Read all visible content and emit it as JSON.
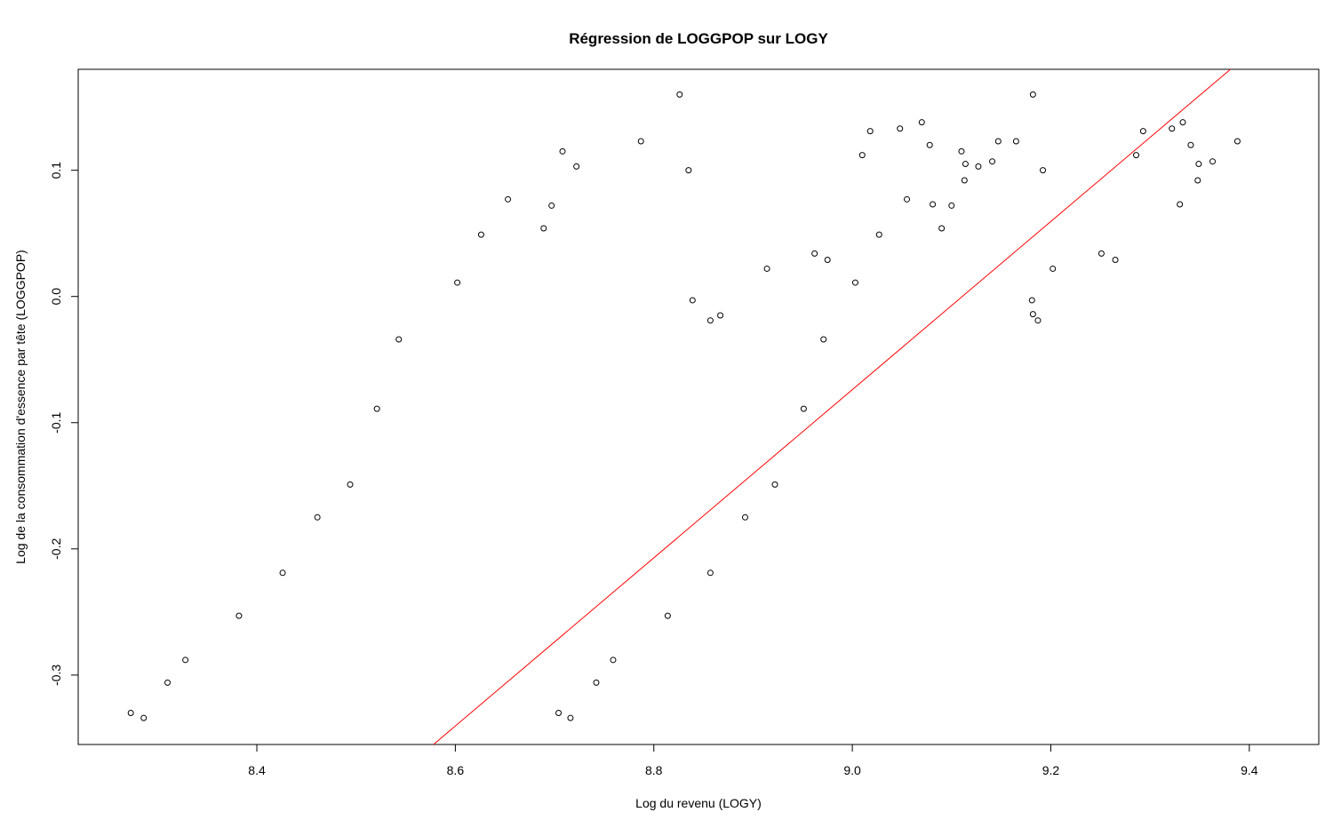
{
  "chart_data": {
    "type": "scatter",
    "title": "Régression de LOGGPOP sur LOGY",
    "xlabel": "Log du revenu (LOGY)",
    "ylabel": "Log de la consommation d'essence par tête (LOGGPOP)",
    "xlim": [
      8.22,
      9.47
    ],
    "ylim": [
      -0.355,
      0.18
    ],
    "x_ticks": [
      8.4,
      8.6,
      8.8,
      9.0,
      9.2,
      9.4
    ],
    "x_tick_labels": [
      "8.4",
      "8.6",
      "8.8",
      "9.0",
      "9.2",
      "9.4"
    ],
    "y_ticks": [
      -0.3,
      -0.2,
      -0.1,
      0.0,
      0.1
    ],
    "y_tick_labels": [
      "-0.3",
      "-0.2",
      "-0.1",
      "0.0",
      "0.1"
    ],
    "grid": false,
    "series": [
      {
        "type": "scatter",
        "marker": "open-circle",
        "color": "#000000",
        "points": [
          [
            8.273,
            -0.33
          ],
          [
            8.286,
            -0.334
          ],
          [
            8.31,
            -0.306
          ],
          [
            8.328,
            -0.288
          ],
          [
            8.382,
            -0.253
          ],
          [
            8.426,
            -0.219
          ],
          [
            8.461,
            -0.175
          ],
          [
            8.494,
            -0.149
          ],
          [
            8.521,
            -0.089
          ],
          [
            8.543,
            -0.034
          ],
          [
            8.602,
            0.011
          ],
          [
            8.626,
            0.049
          ],
          [
            8.653,
            0.077
          ],
          [
            8.689,
            0.054
          ],
          [
            8.697,
            0.072
          ],
          [
            8.708,
            0.115
          ],
          [
            8.722,
            0.103
          ],
          [
            8.787,
            0.123
          ],
          [
            8.826,
            0.16
          ],
          [
            8.835,
            0.1
          ],
          [
            8.839,
            -0.003
          ],
          [
            8.857,
            -0.019
          ],
          [
            8.867,
            -0.015
          ],
          [
            8.704,
            -0.33
          ],
          [
            8.716,
            -0.334
          ],
          [
            8.742,
            -0.306
          ],
          [
            8.759,
            -0.288
          ],
          [
            8.814,
            -0.253
          ],
          [
            8.857,
            -0.219
          ],
          [
            8.892,
            -0.175
          ],
          [
            8.922,
            -0.149
          ],
          [
            8.914,
            0.022
          ],
          [
            8.951,
            -0.089
          ],
          [
            8.962,
            0.034
          ],
          [
            8.971,
            -0.034
          ],
          [
            8.975,
            0.029
          ],
          [
            9.003,
            0.011
          ],
          [
            9.01,
            0.112
          ],
          [
            9.018,
            0.131
          ],
          [
            9.027,
            0.049
          ],
          [
            9.048,
            0.133
          ],
          [
            9.055,
            0.077
          ],
          [
            9.07,
            0.138
          ],
          [
            9.078,
            0.12
          ],
          [
            9.081,
            0.073
          ],
          [
            9.09,
            0.054
          ],
          [
            9.1,
            0.072
          ],
          [
            9.11,
            0.115
          ],
          [
            9.113,
            0.092
          ],
          [
            9.114,
            0.105
          ],
          [
            9.127,
            0.103
          ],
          [
            9.141,
            0.107
          ],
          [
            9.147,
            0.123
          ],
          [
            9.165,
            0.123
          ],
          [
            9.182,
            0.16
          ],
          [
            9.181,
            -0.003
          ],
          [
            9.182,
            -0.014
          ],
          [
            9.187,
            -0.019
          ],
          [
            9.192,
            0.1
          ],
          [
            9.202,
            0.022
          ],
          [
            9.251,
            0.034
          ],
          [
            9.265,
            0.029
          ],
          [
            9.286,
            0.112
          ],
          [
            9.293,
            0.131
          ],
          [
            9.322,
            0.133
          ],
          [
            9.33,
            0.073
          ],
          [
            9.333,
            0.138
          ],
          [
            9.341,
            0.12
          ],
          [
            9.348,
            0.092
          ],
          [
            9.349,
            0.105
          ],
          [
            9.363,
            0.107
          ],
          [
            9.388,
            0.123
          ]
        ]
      },
      {
        "type": "line",
        "color": "#ff0000",
        "points": [
          [
            8.575,
            -0.357
          ],
          [
            9.384,
            0.182
          ]
        ]
      }
    ]
  }
}
